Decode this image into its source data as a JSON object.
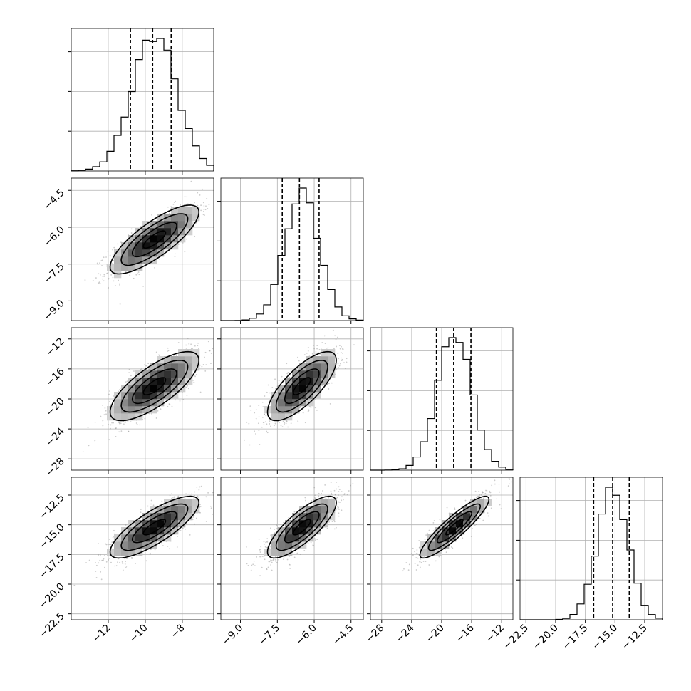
{
  "chart_data": {
    "type": "corner-plot",
    "title": "",
    "grid": true,
    "parameter_count": 4,
    "parameters": [
      {
        "mean": -9.5,
        "sd": 1.2,
        "range": [
          -14.0,
          -6.3
        ],
        "quantiles": [
          -10.8,
          -9.6,
          -8.6
        ],
        "ticks": [
          -12,
          -10,
          -8
        ],
        "tick_labels": [
          "−12",
          "−10",
          "−8"
        ]
      },
      {
        "mean": -6.5,
        "sd": 0.7,
        "range": [
          -9.8,
          -4.0
        ],
        "quantiles": [
          -7.3,
          -6.6,
          -5.8
        ],
        "ticks": [
          -9.0,
          -7.5,
          -6.0,
          -4.5
        ],
        "tick_labels": [
          "−9.0",
          "−7.5",
          "−6.0",
          "−4.5"
        ]
      },
      {
        "mean": -18.3,
        "sd": 2.3,
        "range": [
          -29.5,
          -10.5
        ],
        "quantiles": [
          -20.7,
          -18.4,
          -16.1
        ],
        "ticks": [
          -28,
          -24,
          -20,
          -16,
          -12
        ],
        "tick_labels": [
          "−28",
          "−24",
          "−20",
          "−16",
          "−12"
        ]
      },
      {
        "mean": -15.2,
        "sd": 1.3,
        "range": [
          -23.0,
          -11.0
        ],
        "quantiles": [
          -16.8,
          -15.2,
          -13.8
        ],
        "ticks": [
          -22.5,
          -20.0,
          -17.5,
          -15.0,
          -12.5
        ],
        "tick_labels": [
          "−22.5",
          "−20.0",
          "−17.5",
          "−15.0",
          "−12.5"
        ]
      }
    ],
    "correlations": [
      [
        1,
        0.8,
        0.75,
        0.8
      ],
      [
        0.8,
        1,
        0.75,
        0.8
      ],
      [
        0.75,
        0.75,
        1,
        0.9
      ],
      [
        0.8,
        0.8,
        0.9,
        1
      ]
    ],
    "contour_levels_sigma": [
      0.5,
      1.0,
      1.5,
      2.0
    ],
    "colors": {
      "line": "#000000",
      "grid": "#b0b0b0",
      "points": "#808080",
      "background": "#ffffff"
    }
  }
}
